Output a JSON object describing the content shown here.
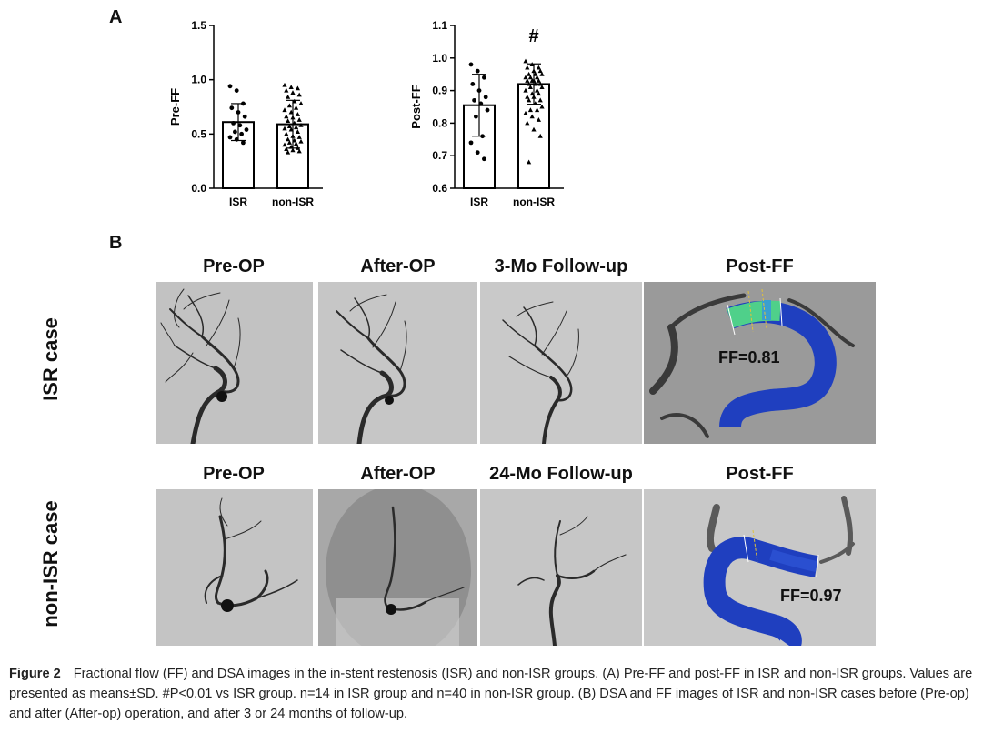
{
  "panels": {
    "a": "A",
    "b": "B"
  },
  "chart_data": [
    {
      "type": "bar",
      "ylabel": "Pre-FF",
      "categories": [
        "ISR",
        "non-ISR"
      ],
      "values": [
        0.61,
        0.59
      ],
      "sd": [
        0.17,
        0.22
      ],
      "ylim": [
        0.0,
        1.5
      ],
      "yticks": [
        "0.0",
        "0.5",
        "1.0",
        "1.5"
      ],
      "points": [
        [
          0.94,
          0.9,
          0.78,
          0.74,
          0.7,
          0.66,
          0.6,
          0.58,
          0.54,
          0.52,
          0.5,
          0.47,
          0.45,
          0.42
        ],
        [
          0.95,
          0.93,
          0.92,
          0.9,
          0.88,
          0.86,
          0.84,
          0.8,
          0.78,
          0.76,
          0.74,
          0.72,
          0.7,
          0.68,
          0.66,
          0.65,
          0.63,
          0.62,
          0.6,
          0.58,
          0.57,
          0.56,
          0.55,
          0.54,
          0.52,
          0.5,
          0.48,
          0.47,
          0.45,
          0.44,
          0.43,
          0.42,
          0.41,
          0.4,
          0.38,
          0.37,
          0.36,
          0.35,
          0.34,
          0.33
        ]
      ]
    },
    {
      "type": "bar",
      "ylabel": "Post-FF",
      "categories": [
        "ISR",
        "non-ISR"
      ],
      "values": [
        0.855,
        0.92
      ],
      "sd": [
        0.095,
        0.062
      ],
      "ylim": [
        0.6,
        1.1
      ],
      "yticks": [
        "0.6",
        "0.7",
        "0.8",
        "0.9",
        "1.0",
        "1.1"
      ],
      "annotation": "#",
      "points": [
        [
          0.98,
          0.96,
          0.94,
          0.92,
          0.9,
          0.88,
          0.87,
          0.86,
          0.84,
          0.82,
          0.76,
          0.74,
          0.71,
          0.69
        ],
        [
          0.99,
          0.98,
          0.97,
          0.97,
          0.96,
          0.96,
          0.95,
          0.95,
          0.95,
          0.94,
          0.94,
          0.94,
          0.93,
          0.93,
          0.93,
          0.93,
          0.92,
          0.92,
          0.92,
          0.91,
          0.91,
          0.9,
          0.9,
          0.89,
          0.89,
          0.88,
          0.88,
          0.87,
          0.87,
          0.86,
          0.85,
          0.84,
          0.84,
          0.83,
          0.82,
          0.81,
          0.8,
          0.78,
          0.76,
          0.68
        ]
      ]
    }
  ],
  "grid": {
    "row1_headers": [
      "Pre-OP",
      "After-OP",
      "3-Mo Follow-up",
      "Post-FF"
    ],
    "row2_headers": [
      "Pre-OP",
      "After-OP",
      "24-Mo Follow-up",
      "Post-FF"
    ],
    "row1_label": "ISR case",
    "row2_label": "non-ISR case",
    "ff_isr": "FF=0.81",
    "ff_nonisr": "FF=0.97"
  },
  "caption": {
    "label": "Figure 2",
    "text": "Fractional flow (FF) and DSA images in the in-stent restenosis (ISR) and non-ISR groups. (A) Pre-FF and post-FF in ISR and non-ISR groups. Values are presented as means±SD. #P<0.01 vs ISR group. n=14 in ISR group and n=40 in non-ISR group. (B) DSA and FF images of ISR and non-ISR cases before (Pre-op) and after (After-op) operation, and after 3 or 24 months of follow-up."
  },
  "colors": {
    "vessel_blue": "#1f3fbf",
    "stenosis_green": "#4fd08a",
    "dsa_bg": "#bdbdbd"
  }
}
